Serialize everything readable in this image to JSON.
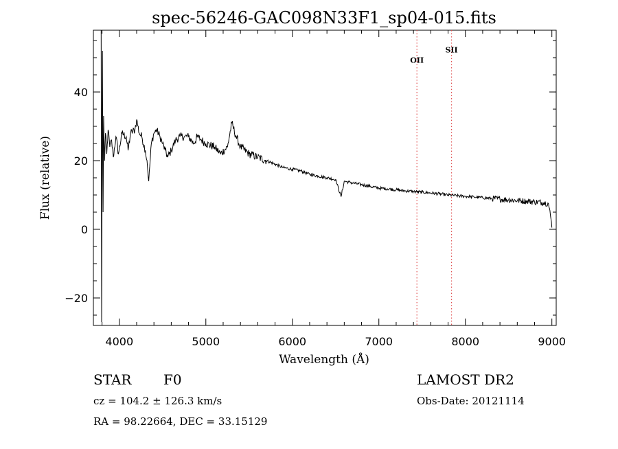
{
  "chart_data": {
    "type": "line",
    "title": "spec-56246-GAC098N33F1_sp04-015.fits",
    "xlabel": "Wavelength (Å)",
    "ylabel": "Flux (relative)",
    "xlim": [
      3700,
      9050
    ],
    "ylim": [
      -28,
      58
    ],
    "x_ticks": [
      4000,
      5000,
      6000,
      7000,
      8000,
      9000
    ],
    "y_ticks": [
      -20,
      0,
      20,
      40
    ],
    "grid": false,
    "line_color": "#000000",
    "spectrum_anchor_points": [
      [
        3790,
        58
      ],
      [
        3795,
        -27
      ],
      [
        3805,
        52
      ],
      [
        3812,
        5
      ],
      [
        3818,
        33
      ],
      [
        3830,
        20
      ],
      [
        3840,
        28
      ],
      [
        3855,
        22
      ],
      [
        3870,
        29
      ],
      [
        3890,
        24
      ],
      [
        3910,
        26
      ],
      [
        3930,
        21
      ],
      [
        3960,
        27
      ],
      [
        3990,
        22
      ],
      [
        4030,
        28
      ],
      [
        4080,
        27
      ],
      [
        4101,
        23
      ],
      [
        4130,
        28
      ],
      [
        4180,
        29
      ],
      [
        4200,
        32
      ],
      [
        4230,
        28
      ],
      [
        4260,
        27
      ],
      [
        4300,
        23
      ],
      [
        4320,
        20
      ],
      [
        4340,
        14
      ],
      [
        4370,
        25
      ],
      [
        4400,
        28
      ],
      [
        4430,
        29
      ],
      [
        4470,
        27
      ],
      [
        4500,
        25
      ],
      [
        4530,
        23
      ],
      [
        4560,
        21
      ],
      [
        4600,
        23
      ],
      [
        4650,
        26
      ],
      [
        4700,
        27
      ],
      [
        4750,
        27
      ],
      [
        4800,
        27
      ],
      [
        4861,
        25
      ],
      [
        4900,
        27
      ],
      [
        4950,
        26
      ],
      [
        5000,
        25
      ],
      [
        5100,
        24
      ],
      [
        5170,
        22
      ],
      [
        5250,
        24
      ],
      [
        5300,
        31
      ],
      [
        5350,
        27
      ],
      [
        5400,
        24
      ],
      [
        5500,
        22
      ],
      [
        5600,
        21
      ],
      [
        5700,
        20
      ],
      [
        5800,
        19
      ],
      [
        5890,
        18
      ],
      [
        6000,
        17.5
      ],
      [
        6100,
        17
      ],
      [
        6200,
        16
      ],
      [
        6300,
        15.5
      ],
      [
        6400,
        15
      ],
      [
        6500,
        14.5
      ],
      [
        6563,
        9.5
      ],
      [
        6600,
        14
      ],
      [
        6700,
        13.5
      ],
      [
        6800,
        13
      ],
      [
        6900,
        12.5
      ],
      [
        7000,
        12
      ],
      [
        7100,
        11.8
      ],
      [
        7200,
        11.5
      ],
      [
        7300,
        11.2
      ],
      [
        7400,
        11
      ],
      [
        7500,
        10.8
      ],
      [
        7600,
        10.6
      ],
      [
        7700,
        10.3
      ],
      [
        7800,
        10
      ],
      [
        7900,
        9.8
      ],
      [
        8000,
        9.6
      ],
      [
        8100,
        9.4
      ],
      [
        8200,
        9.2
      ],
      [
        8300,
        9
      ],
      [
        8400,
        8.8
      ],
      [
        8500,
        8.6
      ],
      [
        8600,
        8.4
      ],
      [
        8700,
        8.2
      ],
      [
        8800,
        8
      ],
      [
        8900,
        7.8
      ],
      [
        8960,
        7.5
      ],
      [
        8990,
        3
      ],
      [
        9000,
        0.5
      ]
    ],
    "annotations": [
      {
        "label": "OII",
        "x": 7440,
        "label_y": 48.5
      },
      {
        "label": "SII",
        "x": 7840,
        "label_y": 51.5
      }
    ],
    "annotation_color": "#e05050"
  },
  "info": {
    "object_class": "STAR",
    "subclass": "F0",
    "survey": "LAMOST DR2",
    "redshift": "cz = 104.2 ± 126.3 km/s",
    "obs_date": "Obs-Date: 20121114",
    "coords": "RA =  98.22664, DEC =  33.15129"
  }
}
